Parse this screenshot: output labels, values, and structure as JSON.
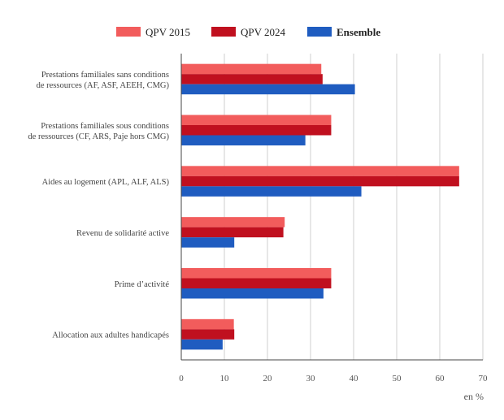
{
  "chart_data": {
    "type": "bar",
    "orientation": "horizontal",
    "categories": [
      [
        "Prestations familiales sans conditions",
        "de ressources (AF, ASF, AEEH, CMG)"
      ],
      [
        "Prestations familiales sous conditions",
        "de ressources (CF, ARS, Paje hors CMG)"
      ],
      [
        "Aides au logement (APL, ALF, ALS)"
      ],
      [
        "Revenu de solidarité active"
      ],
      [
        "Prime d’activité"
      ],
      [
        "Allocation aux adultes handicapés"
      ]
    ],
    "series": [
      {
        "name": "QPV 2015",
        "color": "#f25c5c",
        "values": [
          32.5,
          34.8,
          64.5,
          24.0,
          34.8,
          12.2
        ]
      },
      {
        "name": "QPV 2024",
        "color": "#c0101f",
        "values": [
          32.8,
          34.8,
          64.5,
          23.7,
          34.8,
          12.3
        ]
      },
      {
        "name": "Ensemble",
        "color": "#1f5cc0",
        "values": [
          40.3,
          28.8,
          41.8,
          12.3,
          33.0,
          9.6
        ]
      }
    ],
    "xlim": [
      0,
      70
    ],
    "xticks": [
      "0",
      "10",
      "20",
      "30",
      "40",
      "50",
      "60",
      "70"
    ],
    "xunit": "en %",
    "grid": true,
    "legend_position": "top-center"
  }
}
